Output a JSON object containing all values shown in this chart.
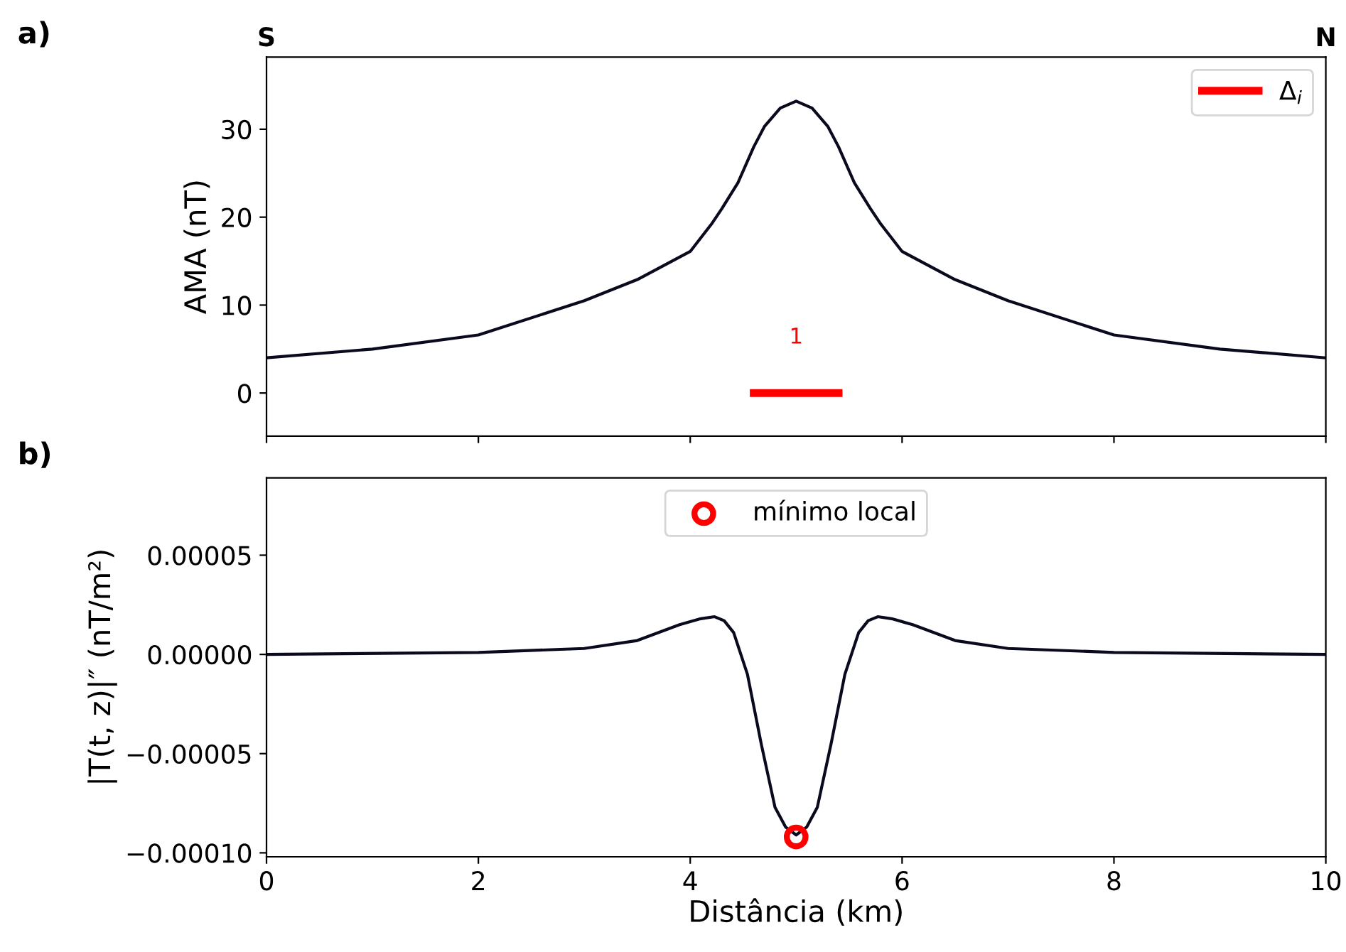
{
  "chart_data": [
    {
      "type": "line",
      "title": "a)",
      "ylabel": "AMA (nT)",
      "xlim": [
        0,
        10
      ],
      "xticks": [
        0,
        2,
        4,
        6,
        8,
        10
      ],
      "ylim": [
        -4.9,
        38.2
      ],
      "yticks": [
        0,
        10,
        20,
        30
      ],
      "tick_labels": "y",
      "grid": false,
      "legend": "top right",
      "annotations": [
        "S",
        "N",
        "1"
      ],
      "series": [
        {
          "color": "#0a0a1e",
          "x": [
            0,
            1,
            2,
            3,
            3.5,
            4,
            4.2,
            4.3,
            4.45,
            4.6,
            4.7,
            4.85,
            5,
            5.15,
            5.3,
            5.4,
            5.55,
            5.7,
            5.8,
            6,
            6.5,
            7,
            8,
            9,
            10
          ],
          "values": [
            4.0,
            5.0,
            6.6,
            10.5,
            12.9,
            16.1,
            19.2,
            21.0,
            23.9,
            28.0,
            30.3,
            32.4,
            33.2,
            32.4,
            30.3,
            28.0,
            23.9,
            21.0,
            19.2,
            16.1,
            12.9,
            10.5,
            6.6,
            5.0,
            4.0
          ]
        },
        {
          "name": "Δ$_{i}$",
          "color": "#ff0000",
          "x": [
            4.6,
            5.4
          ],
          "values": [
            0,
            0
          ]
        }
      ]
    },
    {
      "type": "line",
      "title": "b)",
      "xlabel": "Distância (km)",
      "ylabel": "|T(t, z)|″ (nT/m²)",
      "xlim": [
        0,
        10
      ],
      "xticks": [
        0,
        2,
        4,
        6,
        8,
        10
      ],
      "ylim": [
        -0.000102,
        8.9e-05
      ],
      "yticks": [
        {
          "value": -0.0001,
          "label": "−0.00010"
        },
        {
          "value": -5e-05,
          "label": "−0.00005"
        },
        {
          "value": 0,
          "label": "0.00000"
        },
        {
          "value": 5e-05,
          "label": "0.00005"
        }
      ],
      "grid": false,
      "legend": "top",
      "series": [
        {
          "color": "#0a0a1e",
          "x": [
            0,
            2,
            3,
            3.5,
            3.9,
            4.1,
            4.23,
            4.32,
            4.41,
            4.54,
            4.67,
            4.8,
            4.9,
            5,
            5.1,
            5.2,
            5.33,
            5.46,
            5.59,
            5.68,
            5.77,
            5.9,
            6.1,
            6.5,
            7,
            8,
            10
          ],
          "values": [
            0,
            1e-06,
            3e-06,
            7e-06,
            1.5e-05,
            1.8e-05,
            1.9e-05,
            1.7e-05,
            1.1e-05,
            -1e-05,
            -4.5e-05,
            -7.7e-05,
            -8.7e-05,
            -9.1e-05,
            -8.7e-05,
            -7.7e-05,
            -4.5e-05,
            -1e-05,
            1.1e-05,
            1.7e-05,
            1.9e-05,
            1.8e-05,
            1.5e-05,
            7e-06,
            3e-06,
            1e-06,
            0
          ]
        },
        {
          "type": "scatter",
          "name": "mínimo local",
          "color": "#ff0000",
          "marker": "circle",
          "x": [
            5
          ],
          "values": [
            -9.2e-05
          ]
        }
      ]
    }
  ]
}
